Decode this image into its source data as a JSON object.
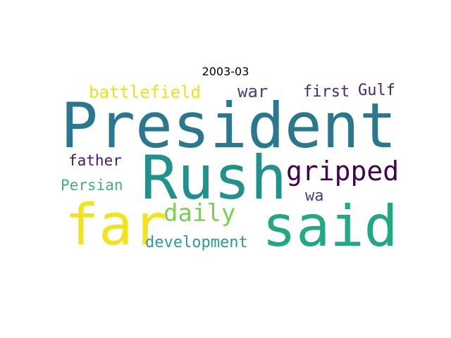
{
  "title": "2003-03",
  "words": [
    {
      "text": "President",
      "color": "#2a788e"
    },
    {
      "text": "Rush",
      "color": "#21918c"
    },
    {
      "text": "far",
      "color": "#f3e31e"
    },
    {
      "text": "said",
      "color": "#22a884"
    },
    {
      "text": "gripped",
      "color": "#440154"
    },
    {
      "text": "daily",
      "color": "#7ad151"
    },
    {
      "text": "battlefield",
      "color": "#e7e41e"
    },
    {
      "text": "development",
      "color": "#2c9b91"
    },
    {
      "text": "war",
      "color": "#46417f"
    },
    {
      "text": "first",
      "color": "#482878"
    },
    {
      "text": "Gulf",
      "color": "#482475"
    },
    {
      "text": "father",
      "color": "#461a66"
    },
    {
      "text": "Persian",
      "color": "#41b07d"
    },
    {
      "text": "wa",
      "color": "#414487"
    }
  ]
}
